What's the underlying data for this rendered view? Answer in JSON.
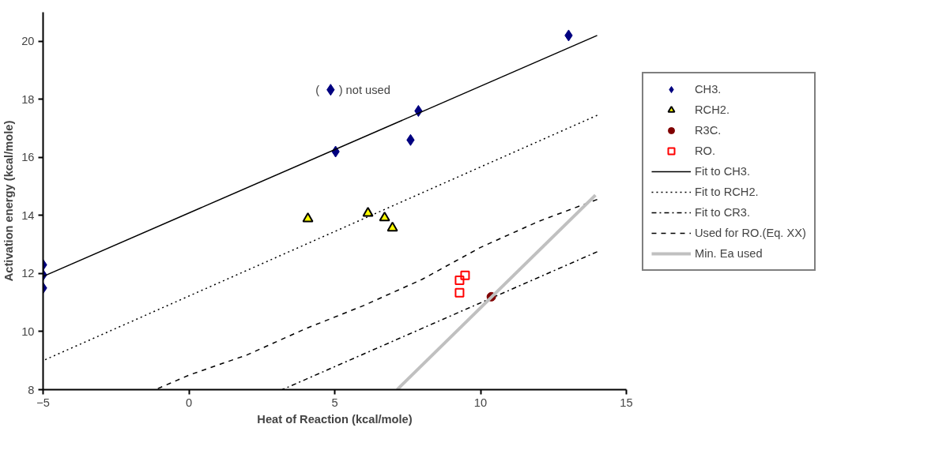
{
  "chart_data": {
    "type": "scatter",
    "xlabel": "Heat of Reaction (kcal/mole)",
    "ylabel": "Activation energy (kcal/mole)",
    "xlim": [
      -5,
      15
    ],
    "xticks": [
      -5,
      0,
      5,
      10,
      15
    ],
    "ylim": [
      8,
      21
    ],
    "yticks": [
      8,
      10,
      12,
      14,
      16,
      18,
      20
    ],
    "grid": false,
    "legend": "right",
    "series": [
      {
        "name": "CH3.",
        "marker": "diamond",
        "color": "#000080",
        "x": [
          -5,
          -5,
          -5,
          5.03,
          7.6,
          7.87,
          13.02,
          4.86
        ],
        "values": [
          12.3,
          11.95,
          11.5,
          16.2,
          16.6,
          17.6,
          20.2,
          18.33
        ]
      },
      {
        "name": "RCH2.",
        "marker": "triangle",
        "color": "#ffff00",
        "x": [
          4.08,
          6.14,
          6.71,
          6.98
        ],
        "values": [
          13.89,
          14.08,
          13.92,
          13.57
        ]
      },
      {
        "name": "R3C.",
        "marker": "circle",
        "color": "#800000",
        "x": [
          10.37
        ],
        "values": [
          11.2
        ]
      },
      {
        "name": "RO.",
        "marker": "square",
        "color": "#ff0000",
        "x": [
          9.28,
          9.47,
          9.28
        ],
        "values": [
          11.77,
          11.94,
          11.34
        ]
      },
      {
        "name": "Fit to CH3.",
        "type": "line",
        "line_style": "solid",
        "color": "#000000",
        "x": [
          -5,
          14
        ],
        "values": [
          11.9,
          20.2
        ]
      },
      {
        "name": "Fit to RCH2.",
        "type": "line",
        "line_style": "dotted",
        "color": "#000000",
        "x": [
          -5,
          14
        ],
        "values": [
          9.0,
          17.45
        ]
      },
      {
        "name": "Fit to CR3.",
        "type": "line",
        "line_style": "dashdot",
        "color": "#000000",
        "x": [
          3.2,
          14
        ],
        "values": [
          8,
          12.75
        ]
      },
      {
        "name": "Used for RO.(Eq. XX)",
        "type": "line",
        "line_style": "dashed",
        "color": "#000000",
        "x": [
          -1.15,
          0,
          2,
          4,
          6,
          8,
          10,
          12,
          14
        ],
        "values": [
          8,
          8.5,
          9.2,
          10.1,
          10.9,
          11.8,
          12.9,
          13.8,
          14.55
        ]
      },
      {
        "name": "Min. Ea used",
        "type": "line",
        "line_style": "solid",
        "color": "#c0c0c0",
        "x": [
          7.14,
          13.94
        ],
        "values": [
          8,
          14.7
        ]
      }
    ],
    "annotations": [
      {
        "text": "(      ) not used",
        "x": 4.86,
        "y": 18.33
      }
    ]
  }
}
